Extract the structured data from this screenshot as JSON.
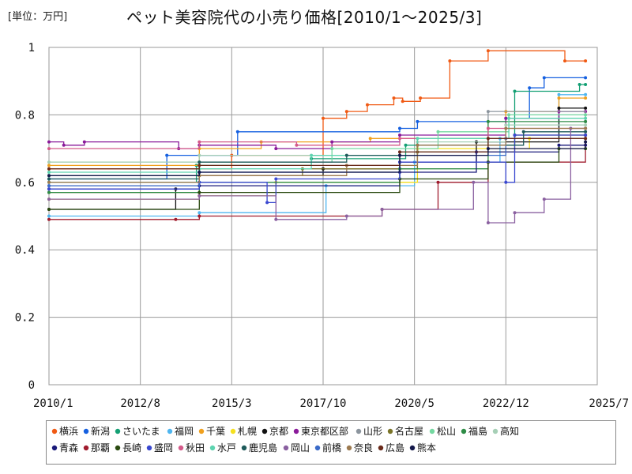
{
  "header": {
    "unit_label": "[単位：万円]",
    "title": "ペット美容院代の小売り価格[2010/1～2025/3]"
  },
  "chart_data": {
    "type": "line",
    "x_ticks": [
      "2010/1",
      "2012/8",
      "2015/3",
      "2017/10",
      "2020/5",
      "2022/12",
      "2025/7"
    ],
    "y_ticks": [
      "0",
      "0.2",
      "0.4",
      "0.6",
      "0.8",
      "1"
    ],
    "ylim": [
      0,
      1
    ],
    "xlim": [
      "2010/1",
      "2025/7"
    ],
    "grid": true,
    "legend_position": "bottom",
    "series": [
      {
        "name": "横浜",
        "color": "#f05a14",
        "points": [
          [
            "2010/1",
            0.64
          ],
          [
            "2015/3",
            0.68
          ],
          [
            "2017/10",
            0.79
          ],
          [
            "2018/6",
            0.81
          ],
          [
            "2019/1",
            0.83
          ],
          [
            "2019/10",
            0.85
          ],
          [
            "2020/1",
            0.84
          ],
          [
            "2020/7",
            0.85
          ],
          [
            "2021/5",
            0.96
          ],
          [
            "2022/6",
            0.99
          ],
          [
            "2024/8",
            0.96
          ],
          [
            "2025/3",
            0.96
          ]
        ]
      },
      {
        "name": "新潟",
        "color": "#1560e0",
        "points": [
          [
            "2010/1",
            0.61
          ],
          [
            "2013/5",
            0.68
          ],
          [
            "2015/5",
            0.75
          ],
          [
            "2019/12",
            0.76
          ],
          [
            "2020/6",
            0.78
          ],
          [
            "2022/12",
            0.79
          ],
          [
            "2023/8",
            0.88
          ],
          [
            "2024/1",
            0.91
          ],
          [
            "2025/3",
            0.91
          ]
        ]
      },
      {
        "name": "さいたま",
        "color": "#14a074",
        "points": [
          [
            "2010/1",
            0.6
          ],
          [
            "2014/3",
            0.65
          ],
          [
            "2017/6",
            0.67
          ],
          [
            "2020/2",
            0.71
          ],
          [
            "2023/3",
            0.87
          ],
          [
            "2025/1",
            0.89
          ],
          [
            "2025/3",
            0.89
          ]
        ]
      },
      {
        "name": "福岡",
        "color": "#4fb6f0",
        "points": [
          [
            "2010/1",
            0.5
          ],
          [
            "2014/4",
            0.51
          ],
          [
            "2017/11",
            0.59
          ],
          [
            "2020/5",
            0.66
          ],
          [
            "2022/10",
            0.73
          ],
          [
            "2024/6",
            0.86
          ],
          [
            "2025/3",
            0.86
          ]
        ]
      },
      {
        "name": "千葉",
        "color": "#f0a01e",
        "points": [
          [
            "2010/1",
            0.65
          ],
          [
            "2014/4",
            0.7
          ],
          [
            "2016/1",
            0.72
          ],
          [
            "2019/2",
            0.73
          ],
          [
            "2022/12",
            0.81
          ],
          [
            "2024/6",
            0.85
          ],
          [
            "2025/3",
            0.85
          ]
        ]
      },
      {
        "name": "札幌",
        "color": "#f5e01e",
        "points": [
          [
            "2010/1",
            0.55
          ],
          [
            "2014/4",
            0.56
          ],
          [
            "2016/6",
            0.6
          ],
          [
            "2020/6",
            0.7
          ],
          [
            "2023/8",
            0.73
          ],
          [
            "2025/3",
            0.73
          ]
        ]
      },
      {
        "name": "京都",
        "color": "#111111",
        "points": [
          [
            "2010/1",
            0.52
          ],
          [
            "2013/8",
            0.58
          ],
          [
            "2014/4",
            0.62
          ],
          [
            "2017/10",
            0.64
          ],
          [
            "2019/12",
            0.66
          ],
          [
            "2022/2",
            0.72
          ],
          [
            "2024/6",
            0.82
          ],
          [
            "2025/3",
            0.82
          ]
        ]
      },
      {
        "name": "東京都区部",
        "color": "#8a1a9a",
        "points": [
          [
            "2010/1",
            0.72
          ],
          [
            "2010/6",
            0.71
          ],
          [
            "2011/1",
            0.72
          ],
          [
            "2013/9",
            0.7
          ],
          [
            "2014/4",
            0.71
          ],
          [
            "2016/6",
            0.7
          ],
          [
            "2018/1",
            0.72
          ],
          [
            "2019/12",
            0.74
          ],
          [
            "2022/12",
            0.79
          ],
          [
            "2024/6",
            0.81
          ],
          [
            "2025/3",
            0.81
          ]
        ]
      },
      {
        "name": "山形",
        "color": "#8c959e",
        "points": [
          [
            "2010/1",
            0.59
          ],
          [
            "2014/4",
            0.63
          ],
          [
            "2019/12",
            0.69
          ],
          [
            "2022/6",
            0.81
          ],
          [
            "2025/3",
            0.78
          ]
        ]
      },
      {
        "name": "名古屋",
        "color": "#7a7428",
        "points": [
          [
            "2010/1",
            0.57
          ],
          [
            "2014/4",
            0.62
          ],
          [
            "2017/3",
            0.64
          ],
          [
            "2020/6",
            0.69
          ],
          [
            "2023/3",
            0.74
          ],
          [
            "2025/3",
            0.74
          ]
        ]
      },
      {
        "name": "松山",
        "color": "#74d8a0",
        "points": [
          [
            "2010/1",
            0.62
          ],
          [
            "2014/4",
            0.66
          ],
          [
            "2018/1",
            0.7
          ],
          [
            "2021/1",
            0.75
          ],
          [
            "2023/1",
            0.8
          ],
          [
            "2025/3",
            0.8
          ]
        ]
      },
      {
        "name": "福島",
        "color": "#2e8c46",
        "points": [
          [
            "2010/1",
            0.57
          ],
          [
            "2014/4",
            0.6
          ],
          [
            "2019/12",
            0.64
          ],
          [
            "2022/6",
            0.78
          ],
          [
            "2025/3",
            0.78
          ]
        ]
      },
      {
        "name": "高知",
        "color": "#a6cfb6",
        "points": [
          [
            "2010/1",
            0.66
          ],
          [
            "2014/4",
            0.68
          ],
          [
            "2020/6",
            0.72
          ],
          [
            "2022/12",
            0.77
          ],
          [
            "2025/3",
            0.77
          ]
        ]
      },
      {
        "name": "青森",
        "color": "#1a1a7a",
        "points": [
          [
            "2010/1",
            0.58
          ],
          [
            "2014/4",
            0.59
          ],
          [
            "2019/12",
            0.63
          ],
          [
            "2022/2",
            0.69
          ],
          [
            "2024/6",
            0.71
          ],
          [
            "2025/3",
            0.71
          ]
        ]
      },
      {
        "name": "那覇",
        "color": "#a01c2e",
        "points": [
          [
            "2010/1",
            0.49
          ],
          [
            "2013/8",
            0.49
          ],
          [
            "2014/4",
            0.5
          ],
          [
            "2019/6",
            0.52
          ],
          [
            "2021/1",
            0.6
          ],
          [
            "2022/6",
            0.66
          ],
          [
            "2025/3",
            0.74
          ]
        ]
      },
      {
        "name": "長崎",
        "color": "#2a4a10",
        "points": [
          [
            "2010/1",
            0.52
          ],
          [
            "2014/4",
            0.57
          ],
          [
            "2019/12",
            0.61
          ],
          [
            "2022/6",
            0.66
          ],
          [
            "2024/6",
            0.7
          ],
          [
            "2025/3",
            0.7
          ]
        ]
      },
      {
        "name": "盛岡",
        "color": "#3a48d0",
        "points": [
          [
            "2010/1",
            0.58
          ],
          [
            "2014/4",
            0.6
          ],
          [
            "2016/3",
            0.54
          ],
          [
            "2016/6",
            0.61
          ],
          [
            "2019/12",
            0.66
          ],
          [
            "2022/12",
            0.6
          ],
          [
            "2023/3",
            0.74
          ],
          [
            "2025/3",
            0.74
          ]
        ]
      },
      {
        "name": "秋田",
        "color": "#d45a8a",
        "points": [
          [
            "2010/1",
            0.7
          ],
          [
            "2014/4",
            0.72
          ],
          [
            "2017/1",
            0.71
          ],
          [
            "2019/12",
            0.73
          ],
          [
            "2022/6",
            0.76
          ],
          [
            "2025/3",
            0.76
          ]
        ]
      },
      {
        "name": "水戸",
        "color": "#5ed4b0",
        "points": [
          [
            "2010/1",
            0.63
          ],
          [
            "2014/4",
            0.64
          ],
          [
            "2017/6",
            0.68
          ],
          [
            "2020/6",
            0.73
          ],
          [
            "2023/1",
            0.79
          ],
          [
            "2025/3",
            0.79
          ]
        ]
      },
      {
        "name": "鹿児島",
        "color": "#1e5a5a",
        "points": [
          [
            "2010/1",
            0.61
          ],
          [
            "2014/4",
            0.66
          ],
          [
            "2018/6",
            0.68
          ],
          [
            "2020/6",
            0.71
          ],
          [
            "2023/6",
            0.75
          ],
          [
            "2025/3",
            0.75
          ]
        ]
      },
      {
        "name": "岡山",
        "color": "#8a60a0",
        "points": [
          [
            "2010/1",
            0.55
          ],
          [
            "2014/4",
            0.56
          ],
          [
            "2016/6",
            0.49
          ],
          [
            "2018/6",
            0.5
          ],
          [
            "2019/6",
            0.52
          ],
          [
            "2022/1",
            0.6
          ],
          [
            "2022/6",
            0.48
          ],
          [
            "2023/3",
            0.51
          ],
          [
            "2024/1",
            0.55
          ],
          [
            "2024/10",
            0.76
          ],
          [
            "2025/3",
            0.76
          ]
        ]
      },
      {
        "name": "前橋",
        "color": "#3a6ac8",
        "points": [
          [
            "2010/1",
            0.59
          ],
          [
            "2014/4",
            0.63
          ],
          [
            "2019/12",
            0.68
          ],
          [
            "2022/12",
            0.73
          ],
          [
            "2025/3",
            0.73
          ]
        ]
      },
      {
        "name": "奈良",
        "color": "#9c7a50",
        "points": [
          [
            "2010/1",
            0.6
          ],
          [
            "2014/4",
            0.62
          ],
          [
            "2018/6",
            0.65
          ],
          [
            "2020/6",
            0.71
          ],
          [
            "2022/12",
            0.76
          ],
          [
            "2025/3",
            0.76
          ]
        ]
      },
      {
        "name": "広島",
        "color": "#6a2a1a",
        "points": [
          [
            "2010/1",
            0.64
          ],
          [
            "2014/4",
            0.65
          ],
          [
            "2019/12",
            0.69
          ],
          [
            "2022/6",
            0.73
          ],
          [
            "2025/3",
            0.73
          ]
        ]
      },
      {
        "name": "熊本",
        "color": "#14184a",
        "points": [
          [
            "2010/1",
            0.62
          ],
          [
            "2014/4",
            0.63
          ],
          [
            "2019/12",
            0.68
          ],
          [
            "2022/6",
            0.7
          ],
          [
            "2025/3",
            0.72
          ]
        ]
      }
    ]
  }
}
